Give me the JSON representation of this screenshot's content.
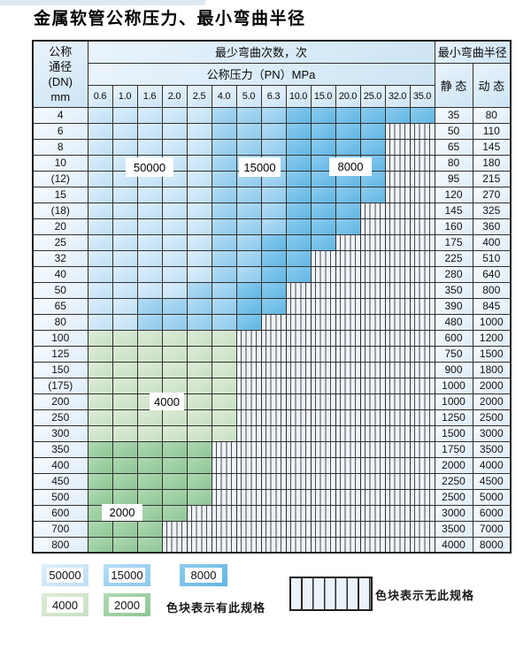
{
  "title": "金属软管公称压力、最小弯曲半径",
  "table": {
    "header": {
      "dn_label_lines": [
        "公称",
        "通径",
        "(DN)",
        "mm"
      ],
      "cycles_header": "最少弯曲次数，次",
      "pressure_header": "公称压力（PN）MPa",
      "pressures": [
        "0.6",
        "1.0",
        "1.6",
        "2.0",
        "2.5",
        "4.0",
        "5.0",
        "6.3",
        "10.0",
        "15.0",
        "20.0",
        "25.0",
        "32.0",
        "35.0"
      ],
      "radius_header": "最小弯曲半径",
      "static_label": "静 态",
      "dynamic_label": "动 态"
    },
    "cell_code_meaning": {
      "L": "50000次",
      "M": "15000次",
      "D": "8000次",
      "G": "4000次",
      "E": "2000次",
      "X": "无此规格"
    },
    "rows": [
      {
        "dn": "4",
        "cells": "LLLLLMMMDDDDDD",
        "static": "35",
        "dynamic": "80"
      },
      {
        "dn": "6",
        "cells": "LLLLLMMMDDDDXX",
        "static": "50",
        "dynamic": "110"
      },
      {
        "dn": "8",
        "cells": "LLLLLMMMDDDDXX",
        "static": "65",
        "dynamic": "145"
      },
      {
        "dn": "10",
        "cells": "LLLLLMMMDDDDXX",
        "static": "80",
        "dynamic": "180"
      },
      {
        "dn": "(12)",
        "cells": "LLLLLMMMDDDDXX",
        "static": "95",
        "dynamic": "215"
      },
      {
        "dn": "15",
        "cells": "LLLLLMMMDDDDXX",
        "static": "120",
        "dynamic": "270"
      },
      {
        "dn": "(18)",
        "cells": "LLLLLMMMDDDXXX",
        "static": "145",
        "dynamic": "325"
      },
      {
        "dn": "20",
        "cells": "LLLLLMMMDDDXXX",
        "static": "160",
        "dynamic": "360"
      },
      {
        "dn": "25",
        "cells": "LLLLLMMDDDXXXX",
        "static": "175",
        "dynamic": "400"
      },
      {
        "dn": "32",
        "cells": "LLLLLMMDDXXXXX",
        "static": "225",
        "dynamic": "510"
      },
      {
        "dn": "40",
        "cells": "LLLLLMMDDXXXXX",
        "static": "280",
        "dynamic": "640"
      },
      {
        "dn": "50",
        "cells": "LLLLMMDDXXXXXX",
        "static": "350",
        "dynamic": "800"
      },
      {
        "dn": "65",
        "cells": "LLMMMMDDXXXXXX",
        "static": "390",
        "dynamic": "845"
      },
      {
        "dn": "80",
        "cells": "LLMMMMDXXXXXXX",
        "static": "480",
        "dynamic": "1000"
      },
      {
        "dn": "100",
        "cells": "GGGGGGXXXXXXXX",
        "static": "600",
        "dynamic": "1200"
      },
      {
        "dn": "125",
        "cells": "GGGGGGXXXXXXXX",
        "static": "750",
        "dynamic": "1500"
      },
      {
        "dn": "150",
        "cells": "GGGGGGXXXXXXXX",
        "static": "900",
        "dynamic": "1800"
      },
      {
        "dn": "(175)",
        "cells": "GGGGGGXXXXXXXX",
        "static": "1000",
        "dynamic": "2000"
      },
      {
        "dn": "200",
        "cells": "GGGGGGXXXXXXXX",
        "static": "1000",
        "dynamic": "2000"
      },
      {
        "dn": "250",
        "cells": "GGGGGGXXXXXXXX",
        "static": "1250",
        "dynamic": "2500"
      },
      {
        "dn": "300",
        "cells": "GGGGGGXXXXXXXX",
        "static": "1500",
        "dynamic": "3000"
      },
      {
        "dn": "350",
        "cells": "EEEEEXXXXXXXXX",
        "static": "1750",
        "dynamic": "3500"
      },
      {
        "dn": "400",
        "cells": "EEEEEXXXXXXXXX",
        "static": "2000",
        "dynamic": "4000"
      },
      {
        "dn": "450",
        "cells": "EEEEEXXXXXXXXX",
        "static": "2250",
        "dynamic": "4500"
      },
      {
        "dn": "500",
        "cells": "EEEEEXXXXXXXXX",
        "static": "2500",
        "dynamic": "5000"
      },
      {
        "dn": "600",
        "cells": "EEEEXXXXXXXXXX",
        "static": "3000",
        "dynamic": "6000"
      },
      {
        "dn": "700",
        "cells": "EEEXXXXXXXXXXX",
        "static": "3500",
        "dynamic": "7000"
      },
      {
        "dn": "800",
        "cells": "EEEXXXXXXXXXXX",
        "static": "4000",
        "dynamic": "8000"
      }
    ]
  },
  "zone_labels": {
    "z50000": "50000",
    "z15000": "15000",
    "z8000": "8000",
    "z4000": "4000",
    "z2000": "2000"
  },
  "legend": {
    "chip_50000": "50000",
    "chip_15000": "15000",
    "chip_8000": "8000",
    "chip_4000": "4000",
    "chip_2000": "2000",
    "has_spec_text": "色块表示有此规格",
    "no_spec_text": "色块表示无此规格"
  },
  "colors": {
    "cycles_50000": "#cbe3f4",
    "cycles_15000": "#9fd1ef",
    "cycles_8000": "#73c0e8",
    "cycles_4000": "#d3e5cd",
    "cycles_2000": "#9ccfa3",
    "no_spec_bg": "#eef4fb",
    "grid_line": "#2e2e2e",
    "header_bg": "#d9eaf7"
  }
}
